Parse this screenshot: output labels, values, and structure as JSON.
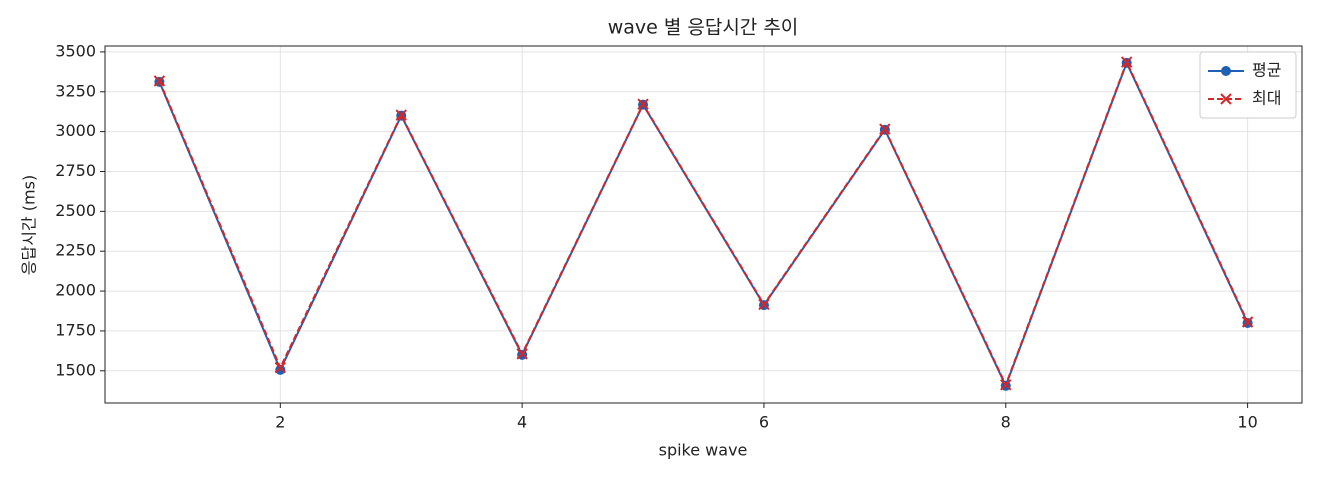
{
  "chart_data": {
    "type": "line",
    "title": "wave 별 응답시간 추이",
    "x_label": "spike wave",
    "y_label": "응답시간 (ms)",
    "x": [
      1,
      2,
      3,
      4,
      5,
      6,
      7,
      8,
      9,
      10
    ],
    "series": [
      {
        "name": "평균",
        "color": "#1f5fb4",
        "style": "solid",
        "marker": "circle",
        "values": [
          3312,
          1506,
          3100,
          1600,
          3169,
          1912,
          3012,
          1406,
          3431,
          1800
        ]
      },
      {
        "name": "최대",
        "color": "#d62728",
        "style": "dashed",
        "marker": "x",
        "values": [
          3318,
          1520,
          3104,
          1606,
          3172,
          1916,
          3016,
          1412,
          3436,
          1806
        ]
      }
    ],
    "xlim": [
      0.55,
      10.45
    ],
    "ylim": [
      1298,
      3537
    ],
    "xticks": [
      2,
      4,
      6,
      8,
      10
    ],
    "yticks": [
      1500,
      1750,
      2000,
      2250,
      2500,
      2750,
      3000,
      3250,
      3500
    ],
    "grid": true,
    "legend": "upper right"
  }
}
